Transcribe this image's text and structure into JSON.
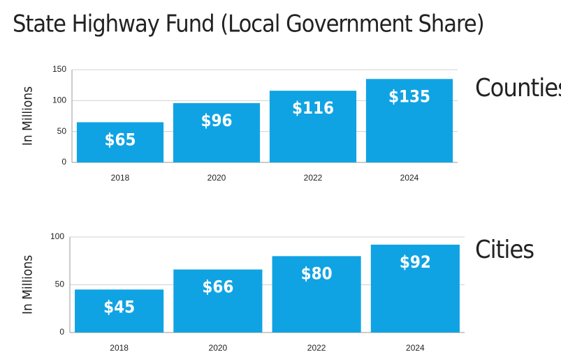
{
  "title": "State Highway Fund (Local Government Share)",
  "chart_data": [
    {
      "type": "bar",
      "title": "Counties",
      "y_label": "In Millions",
      "categories": [
        "2018",
        "2020",
        "2022",
        "2024"
      ],
      "values": [
        65,
        96,
        116,
        135
      ],
      "value_labels": [
        "$65",
        "$96",
        "$116",
        "$135"
      ],
      "color": "#10a3e3",
      "ylim": [
        0,
        150
      ],
      "yticks": [
        0,
        50,
        100,
        150
      ],
      "grid": true
    },
    {
      "type": "bar",
      "title": "Cities",
      "y_label": "In Millions",
      "categories": [
        "2018",
        "2020",
        "2022",
        "2024"
      ],
      "values": [
        45,
        66,
        80,
        92
      ],
      "value_labels": [
        "$45",
        "$66",
        "$80",
        "$92"
      ],
      "color": "#10a3e3",
      "ylim": [
        0,
        100
      ],
      "yticks": [
        0,
        50,
        100
      ],
      "grid": true
    }
  ]
}
